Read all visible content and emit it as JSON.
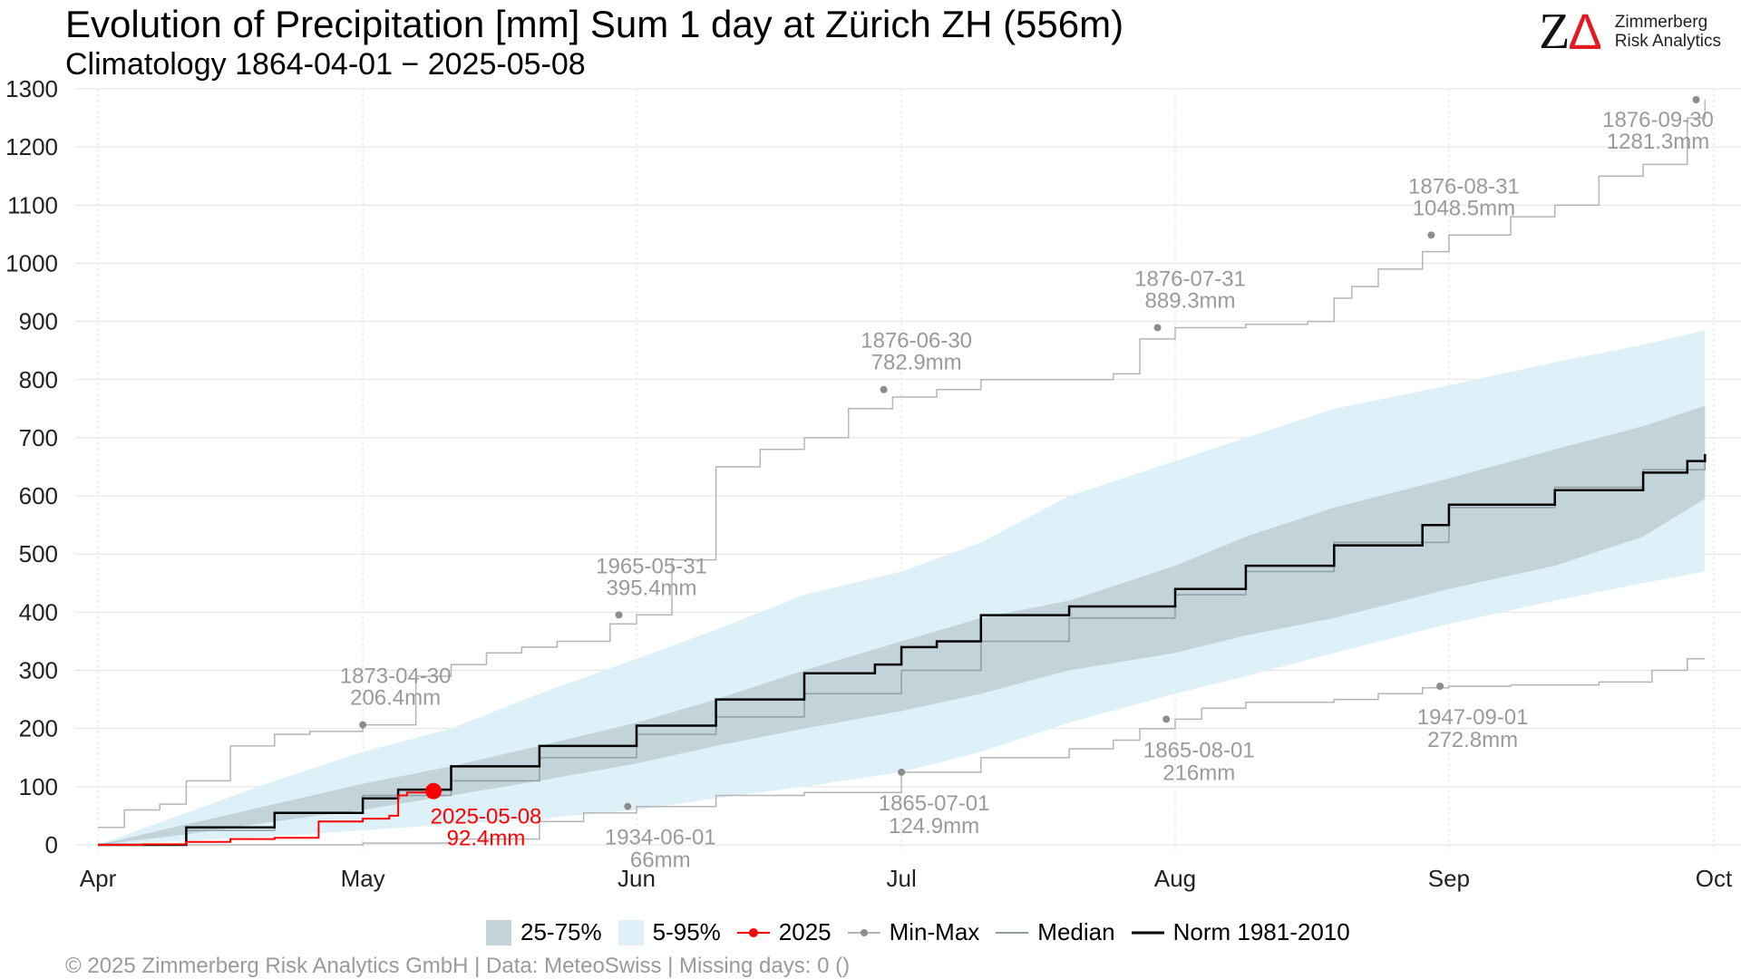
{
  "header": {
    "title": "Evolution of Precipitation [mm] Sum 1 day at Zürich  ZH (556m)",
    "subtitle": "Climatology 1864-04-01 − 2025-05-08"
  },
  "logo": {
    "mark_z": "Z",
    "mark_delta": "Δ",
    "line1": "Zimmerberg",
    "line2": "Risk Analytics"
  },
  "footer": {
    "text": "©  2025 Zimmerberg Risk Analytics GmbH | Data: MeteoSwiss | Missing days: 0 ()"
  },
  "colors": {
    "band_5_95": "#dff1f8",
    "band_25_75": "#c2d3da",
    "current": "#ff0000",
    "minmax": "#b5b5b5",
    "minmax_point": "#8c8c8c",
    "median": "#8f9ea3",
    "norm": "#000000",
    "annotation": "#9a9a9a",
    "grid": "#e3e3e3"
  },
  "legend": [
    {
      "key": "band-25-75",
      "label": "25-75%"
    },
    {
      "key": "band-5-95",
      "label": "5-95%"
    },
    {
      "key": "current",
      "label": "2025"
    },
    {
      "key": "minmax",
      "label": "Min-Max"
    },
    {
      "key": "median",
      "label": "Median"
    },
    {
      "key": "norm",
      "label": "Norm 1981-2010"
    }
  ],
  "chart_data": {
    "type": "area",
    "x_unit": "day of season (0 = Apr 1)",
    "ylim": [
      0,
      1300
    ],
    "yticks": [
      0,
      100,
      200,
      300,
      400,
      500,
      600,
      700,
      800,
      900,
      1000,
      1100,
      1200,
      1300
    ],
    "xticks": [
      {
        "label": "Apr",
        "day": 0
      },
      {
        "label": "May",
        "day": 30
      },
      {
        "label": "Jun",
        "day": 61
      },
      {
        "label": "Jul",
        "day": 91
      },
      {
        "label": "Aug",
        "day": 122
      },
      {
        "label": "Sep",
        "day": 153
      },
      {
        "label": "Oct",
        "day": 183
      }
    ],
    "series": [
      {
        "name": "5-95%",
        "role": "band",
        "x": [
          0,
          10,
          20,
          30,
          40,
          50,
          61,
          70,
          80,
          91,
          100,
          110,
          122,
          130,
          140,
          153,
          165,
          175,
          182
        ],
        "lower": [
          0,
          7,
          15,
          25,
          35,
          45,
          60,
          80,
          100,
          125,
          160,
          210,
          260,
          290,
          330,
          380,
          420,
          450,
          470
        ],
        "upper": [
          0,
          55,
          110,
          160,
          200,
          260,
          320,
          370,
          430,
          470,
          520,
          600,
          660,
          700,
          750,
          790,
          830,
          860,
          885
        ]
      },
      {
        "name": "25-75%",
        "role": "band",
        "x": [
          0,
          10,
          20,
          30,
          40,
          50,
          61,
          70,
          80,
          91,
          100,
          110,
          122,
          130,
          140,
          153,
          165,
          175,
          182
        ],
        "lower": [
          0,
          18,
          40,
          60,
          85,
          110,
          140,
          170,
          200,
          230,
          260,
          300,
          330,
          360,
          390,
          440,
          480,
          530,
          595
        ],
        "upper": [
          0,
          35,
          70,
          105,
          135,
          170,
          210,
          250,
          300,
          350,
          390,
          420,
          480,
          530,
          580,
          630,
          680,
          720,
          755
        ]
      },
      {
        "name": "Median",
        "role": "line",
        "x": [
          0,
          10,
          20,
          30,
          40,
          50,
          61,
          70,
          80,
          91,
          100,
          110,
          122,
          130,
          140,
          153,
          165,
          175,
          182
        ],
        "y": [
          0,
          25,
          55,
          85,
          110,
          150,
          190,
          220,
          260,
          300,
          350,
          390,
          430,
          470,
          520,
          580,
          615,
          645,
          660
        ]
      },
      {
        "name": "Norm 1981-2010",
        "role": "line",
        "x": [
          0,
          10,
          20,
          30,
          34,
          40,
          50,
          61,
          70,
          80,
          88,
          91,
          95,
          100,
          110,
          122,
          130,
          140,
          150,
          153,
          165,
          175,
          180,
          182
        ],
        "y": [
          0,
          30,
          55,
          80,
          95,
          135,
          170,
          205,
          250,
          295,
          310,
          340,
          350,
          395,
          410,
          440,
          480,
          515,
          550,
          585,
          610,
          640,
          660,
          672
        ]
      },
      {
        "name": "2025",
        "role": "current",
        "x": [
          0,
          5,
          10,
          15,
          20,
          25,
          30,
          33,
          34,
          35,
          38
        ],
        "y": [
          0,
          1,
          5,
          10,
          12,
          40,
          45,
          50,
          85,
          90,
          92.4
        ]
      },
      {
        "name": "Max",
        "role": "minmax",
        "x": [
          0,
          3,
          7,
          10,
          15,
          20,
          24,
          30,
          36,
          40,
          44,
          48,
          52,
          58,
          61,
          65,
          70,
          75,
          80,
          85,
          90,
          95,
          100,
          110,
          115,
          118,
          122,
          130,
          137,
          140,
          142,
          145,
          150,
          153,
          160,
          165,
          170,
          175,
          180,
          182
        ],
        "y": [
          30,
          60,
          70,
          110,
          170,
          190,
          195,
          206.4,
          290,
          310,
          330,
          340,
          350,
          380,
          395.4,
          490,
          650,
          680,
          700,
          750,
          770,
          782.9,
          800,
          800,
          810,
          870,
          889.3,
          895,
          900,
          940,
          960,
          990,
          1020,
          1048.5,
          1080,
          1100,
          1150,
          1170,
          1250,
          1281.3
        ]
      },
      {
        "name": "Min",
        "role": "minmax",
        "x": [
          0,
          20,
          30,
          40,
          50,
          55,
          61,
          70,
          80,
          91,
          100,
          110,
          115,
          118,
          122,
          125,
          130,
          140,
          145,
          150,
          153,
          160,
          170,
          176,
          180,
          182
        ],
        "y": [
          0,
          0,
          3,
          10,
          40,
          55,
          66,
          85,
          90,
          124.9,
          150,
          165,
          180,
          200,
          216,
          235,
          245,
          250,
          260,
          270,
          272.8,
          275,
          280,
          300,
          320,
          320
        ]
      }
    ],
    "annotations": [
      {
        "day": 30,
        "value": 206.4,
        "date": "1873-04-30",
        "label": "206.4mm",
        "pos": "above"
      },
      {
        "day": 59,
        "value": 395.4,
        "date": "1965-05-31",
        "label": "395.4mm",
        "pos": "above"
      },
      {
        "day": 89,
        "value": 782.9,
        "date": "1876-06-30",
        "label": "782.9mm",
        "pos": "above"
      },
      {
        "day": 120,
        "value": 889.3,
        "date": "1876-07-31",
        "label": "889.3mm",
        "pos": "above"
      },
      {
        "day": 151,
        "value": 1048.5,
        "date": "1876-08-31",
        "label": "1048.5mm",
        "pos": "above"
      },
      {
        "day": 181,
        "value": 1281.3,
        "date": "1876-09-30",
        "label": "1281.3mm",
        "pos": "below-left"
      },
      {
        "day": 60,
        "value": 66,
        "date": "1934-06-01",
        "label": "66mm",
        "pos": "below"
      },
      {
        "day": 91,
        "value": 124.9,
        "date": "1865-07-01",
        "label": "124.9mm",
        "pos": "below"
      },
      {
        "day": 121,
        "value": 216,
        "date": "1865-08-01",
        "label": "216mm",
        "pos": "below"
      },
      {
        "day": 152,
        "value": 272.8,
        "date": "1947-09-01",
        "label": "272.8mm",
        "pos": "below"
      }
    ],
    "current_point": {
      "day": 38,
      "value": 92.4,
      "date": "2025-05-08",
      "label": "92.4mm"
    }
  }
}
